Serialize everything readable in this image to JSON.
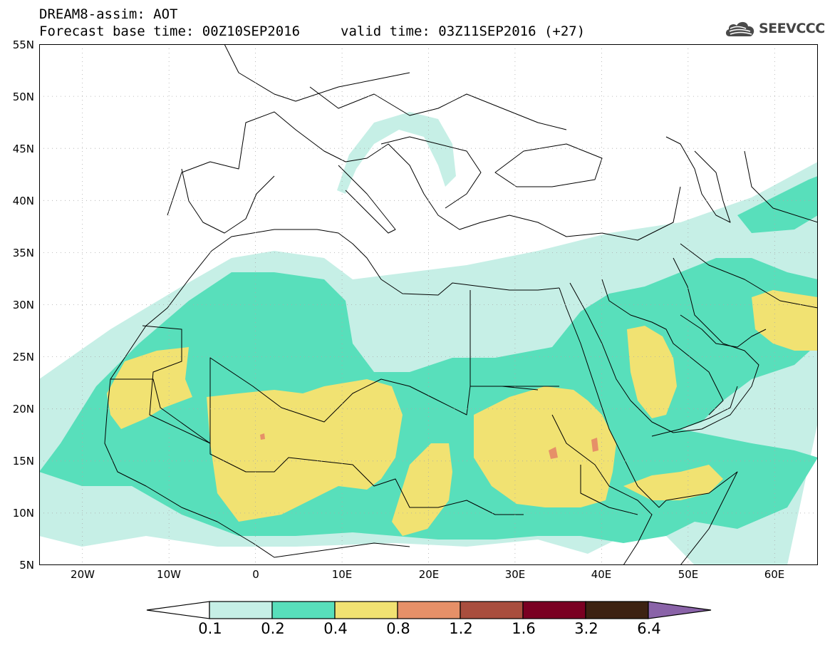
{
  "header": {
    "title": "DREAM8-assim: AOT",
    "base_time": "Forecast base time: 00Z10SEP2016",
    "valid_time": "valid time: 03Z11SEP2016 (+27)"
  },
  "logo": {
    "text": "SEEVCCC",
    "icon": "cloud-icon"
  },
  "axes": {
    "lon_range": [
      -25,
      65
    ],
    "lat_range": [
      5,
      55
    ],
    "y_ticks": [
      "55N",
      "50N",
      "45N",
      "40N",
      "35N",
      "30N",
      "25N",
      "20N",
      "15N",
      "10N",
      "5N"
    ],
    "x_ticks": [
      "20W",
      "10W",
      "0",
      "10E",
      "20E",
      "30E",
      "40E",
      "50E",
      "60E"
    ]
  },
  "colorbar": {
    "labels": [
      "0.1",
      "0.2",
      "0.4",
      "0.8",
      "1.2",
      "1.6",
      "3.2",
      "6.4"
    ],
    "colors": [
      "#ffffff",
      "#c6efe6",
      "#58dfbb",
      "#f1e272",
      "#e69068",
      "#a94e3e",
      "#7a0022",
      "#3d2212",
      "#8a63a8"
    ]
  }
}
